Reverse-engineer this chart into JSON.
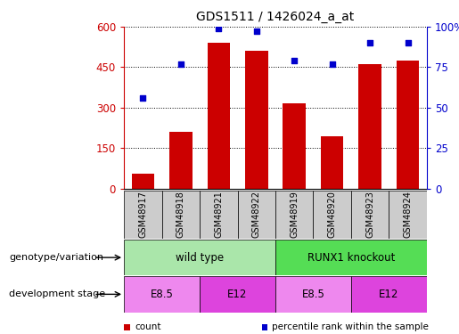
{
  "title": "GDS1511 / 1426024_a_at",
  "samples": [
    "GSM48917",
    "GSM48918",
    "GSM48921",
    "GSM48922",
    "GSM48919",
    "GSM48920",
    "GSM48923",
    "GSM48924"
  ],
  "counts": [
    55,
    210,
    540,
    510,
    315,
    195,
    460,
    475
  ],
  "percentiles": [
    56,
    77,
    99,
    97,
    79,
    77,
    90,
    90
  ],
  "bar_color": "#cc0000",
  "dot_color": "#0000cc",
  "left_ylim": [
    0,
    600
  ],
  "left_yticks": [
    0,
    150,
    300,
    450,
    600
  ],
  "right_ylim": [
    0,
    100
  ],
  "right_yticks": [
    0,
    25,
    50,
    75,
    100
  ],
  "right_yticklabels": [
    "0",
    "25",
    "50",
    "75",
    "100%"
  ],
  "genotype_groups": [
    {
      "label": "wild type",
      "start": 0,
      "end": 4,
      "color": "#aae6aa"
    },
    {
      "label": "RUNX1 knockout",
      "start": 4,
      "end": 8,
      "color": "#55dd55"
    }
  ],
  "stage_groups": [
    {
      "label": "E8.5",
      "start": 0,
      "end": 2,
      "color": "#ee88ee"
    },
    {
      "label": "E12",
      "start": 2,
      "end": 4,
      "color": "#dd44dd"
    },
    {
      "label": "E8.5",
      "start": 4,
      "end": 6,
      "color": "#ee88ee"
    },
    {
      "label": "E12",
      "start": 6,
      "end": 8,
      "color": "#dd44dd"
    }
  ],
  "sample_bg_color": "#cccccc",
  "genotype_label": "genotype/variation",
  "stage_label": "development stage",
  "legend_items": [
    {
      "label": "count",
      "color": "#cc0000"
    },
    {
      "label": "percentile rank within the sample",
      "color": "#0000cc"
    }
  ],
  "axis_left_color": "#cc0000",
  "axis_right_color": "#0000cc"
}
